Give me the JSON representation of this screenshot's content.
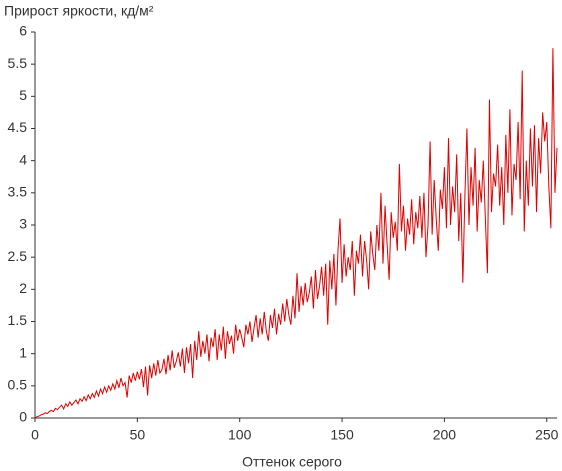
{
  "chart_data": {
    "type": "line",
    "title": "Прирост яркости, кд/м²",
    "x_label": "Оттенок серого",
    "x": [
      0,
      1,
      2,
      3,
      4,
      5,
      6,
      7,
      8,
      9,
      10,
      11,
      12,
      13,
      14,
      15,
      16,
      17,
      18,
      19,
      20,
      21,
      22,
      23,
      24,
      25,
      26,
      27,
      28,
      29,
      30,
      31,
      32,
      33,
      34,
      35,
      36,
      37,
      38,
      39,
      40,
      41,
      42,
      43,
      44,
      45,
      46,
      47,
      48,
      49,
      50,
      51,
      52,
      53,
      54,
      55,
      56,
      57,
      58,
      59,
      60,
      61,
      62,
      63,
      64,
      65,
      66,
      67,
      68,
      69,
      70,
      71,
      72,
      73,
      74,
      75,
      76,
      77,
      78,
      79,
      80,
      81,
      82,
      83,
      84,
      85,
      86,
      87,
      88,
      89,
      90,
      91,
      92,
      93,
      94,
      95,
      96,
      97,
      98,
      99,
      100,
      101,
      102,
      103,
      104,
      105,
      106,
      107,
      108,
      109,
      110,
      111,
      112,
      113,
      114,
      115,
      116,
      117,
      118,
      119,
      120,
      121,
      122,
      123,
      124,
      125,
      126,
      127,
      128,
      129,
      130,
      131,
      132,
      133,
      134,
      135,
      136,
      137,
      138,
      139,
      140,
      141,
      142,
      143,
      144,
      145,
      146,
      147,
      148,
      149,
      150,
      151,
      152,
      153,
      154,
      155,
      156,
      157,
      158,
      159,
      160,
      161,
      162,
      163,
      164,
      165,
      166,
      167,
      168,
      169,
      170,
      171,
      172,
      173,
      174,
      175,
      176,
      177,
      178,
      179,
      180,
      181,
      182,
      183,
      184,
      185,
      186,
      187,
      188,
      189,
      190,
      191,
      192,
      193,
      194,
      195,
      196,
      197,
      198,
      199,
      200,
      201,
      202,
      203,
      204,
      205,
      206,
      207,
      208,
      209,
      210,
      211,
      212,
      213,
      214,
      215,
      216,
      217,
      218,
      219,
      220,
      221,
      222,
      223,
      224,
      225,
      226,
      227,
      228,
      229,
      230,
      231,
      232,
      233,
      234,
      235,
      236,
      237,
      238,
      239,
      240,
      241,
      242,
      243,
      244,
      245,
      246,
      247,
      248,
      249,
      250,
      251,
      252,
      253,
      254,
      255
    ],
    "series": [
      {
        "color": "#e00000",
        "values": [
          0,
          0.02,
          0.03,
          0.05,
          0.06,
          0.08,
          0.07,
          0.1,
          0.12,
          0.1,
          0.15,
          0.13,
          0.17,
          0.2,
          0.14,
          0.22,
          0.18,
          0.25,
          0.2,
          0.24,
          0.28,
          0.22,
          0.3,
          0.26,
          0.33,
          0.27,
          0.36,
          0.3,
          0.38,
          0.32,
          0.42,
          0.34,
          0.45,
          0.38,
          0.48,
          0.4,
          0.5,
          0.43,
          0.53,
          0.45,
          0.58,
          0.47,
          0.62,
          0.5,
          0.55,
          0.32,
          0.66,
          0.55,
          0.7,
          0.58,
          0.72,
          0.6,
          0.76,
          0.48,
          0.8,
          0.35,
          0.82,
          0.62,
          0.85,
          0.66,
          0.9,
          0.7,
          0.75,
          0.92,
          0.68,
          0.98,
          0.74,
          1.05,
          0.78,
          0.88,
          1.02,
          0.8,
          1.08,
          0.7,
          1.1,
          0.85,
          1.15,
          0.62,
          1.2,
          0.9,
          1.35,
          0.95,
          1.2,
          1.0,
          1.3,
          0.88,
          1.25,
          1.1,
          1.38,
          0.9,
          1.3,
          1.05,
          1.42,
          0.92,
          1.35,
          1.15,
          1.28,
          1.0,
          1.45,
          1.2,
          1.38,
          1.25,
          1.1,
          1.45,
          1.3,
          1.5,
          1.18,
          1.4,
          1.6,
          1.25,
          1.55,
          1.3,
          1.65,
          1.35,
          1.2,
          1.6,
          1.4,
          1.7,
          1.3,
          1.62,
          1.45,
          1.78,
          1.5,
          1.85,
          1.6,
          1.45,
          1.9,
          1.55,
          2.25,
          1.65,
          2.05,
          1.75,
          2.1,
          1.8,
          1.95,
          2.2,
          1.7,
          2.3,
          1.85,
          2.05,
          2.35,
          1.9,
          2.4,
          1.45,
          2.45,
          2.0,
          2.55,
          1.75,
          2.6,
          3.1,
          2.1,
          2.7,
          2.2,
          2.5,
          2.3,
          2.75,
          1.9,
          2.6,
          2.4,
          2.85,
          2.2,
          2.75,
          2.45,
          2.0,
          2.9,
          2.55,
          2.3,
          3.0,
          2.6,
          3.5,
          2.4,
          3.3,
          2.7,
          2.15,
          3.2,
          2.8,
          3.05,
          2.6,
          3.95,
          2.9,
          3.3,
          2.6,
          3.1,
          2.85,
          3.4,
          2.7,
          3.2,
          2.95,
          3.45,
          2.8,
          3.5,
          2.5,
          3.0,
          4.3,
          2.85,
          3.7,
          3.1,
          2.6,
          3.55,
          3.25,
          3.9,
          2.95,
          4.35,
          3.0,
          3.6,
          3.2,
          4.1,
          2.75,
          3.5,
          2.1,
          3.45,
          4.5,
          3.0,
          3.9,
          3.3,
          4.2,
          2.9,
          3.7,
          3.35,
          4.0,
          3.1,
          2.25,
          4.95,
          3.2,
          3.8,
          3.6,
          4.25,
          3.3,
          3.9,
          3.0,
          4.4,
          3.5,
          4.8,
          3.15,
          3.95,
          3.7,
          4.6,
          3.4,
          5.4,
          2.9,
          4.0,
          3.3,
          4.5,
          3.6,
          4.55,
          3.2,
          4.35,
          3.8,
          4.75,
          4.3,
          4.6,
          3.6,
          2.95,
          5.75,
          3.5,
          4.2
        ]
      }
    ],
    "xlim": [
      0,
      255
    ],
    "xticks": [
      0,
      50,
      100,
      150,
      200,
      250
    ],
    "ylim": [
      0,
      6
    ],
    "yticks": [
      0,
      0.5,
      1,
      1.5,
      2,
      2.5,
      3,
      3.5,
      4,
      4.5,
      5,
      5.5,
      6
    ],
    "grid": false
  }
}
